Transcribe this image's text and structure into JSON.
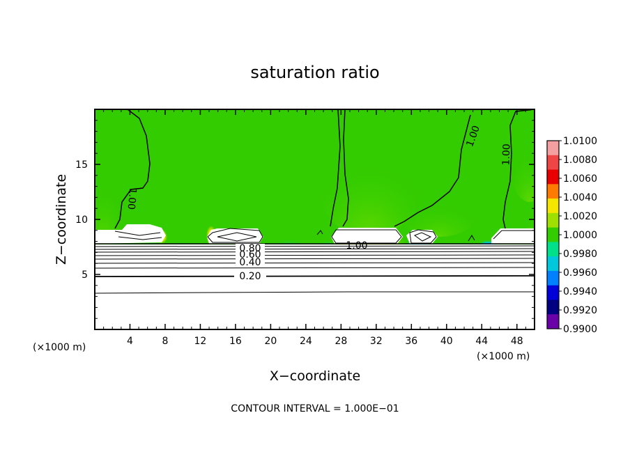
{
  "chart_data": {
    "type": "heatmap",
    "title": "saturation ratio",
    "xlabel": "X−coordinate",
    "ylabel": "Z−coordinate",
    "x_unit_label": "(×1000 m)",
    "z_unit_label": "(×1000 m)",
    "xlim": [
      0,
      50
    ],
    "ylim": [
      0,
      20
    ],
    "x_ticks": [
      "4",
      "8",
      "12",
      "16",
      "20",
      "24",
      "28",
      "32",
      "36",
      "40",
      "44",
      "48"
    ],
    "x_tick_values": [
      4,
      8,
      12,
      16,
      20,
      24,
      28,
      32,
      36,
      40,
      44,
      48
    ],
    "y_ticks": [
      "5",
      "10",
      "15"
    ],
    "y_tick_values": [
      5,
      10,
      15
    ],
    "colorbar": {
      "labels": [
        "1.0100",
        "1.0080",
        "1.0060",
        "1.0040",
        "1.0020",
        "1.0000",
        "0.9980",
        "0.9960",
        "0.9940",
        "0.9920",
        "0.9900"
      ],
      "colors": [
        "#f4a0a0",
        "#f04545",
        "#e80000",
        "#ff7a00",
        "#f5e600",
        "#a0e000",
        "#33cc00",
        "#00e08a",
        "#00c8dc",
        "#0080ff",
        "#0000d8",
        "#000080",
        "#6a00a8"
      ]
    },
    "contour_levels_labeled": [
      "1.00",
      "1.00",
      "1.00",
      "1.00",
      "0.80",
      "0.60",
      "0.40",
      "0.20"
    ],
    "contour_interval_text": "CONTOUR INTERVAL = 1.000E−01",
    "field_background_color": "#33cc00",
    "subsaturated_color": "#ffffff"
  }
}
